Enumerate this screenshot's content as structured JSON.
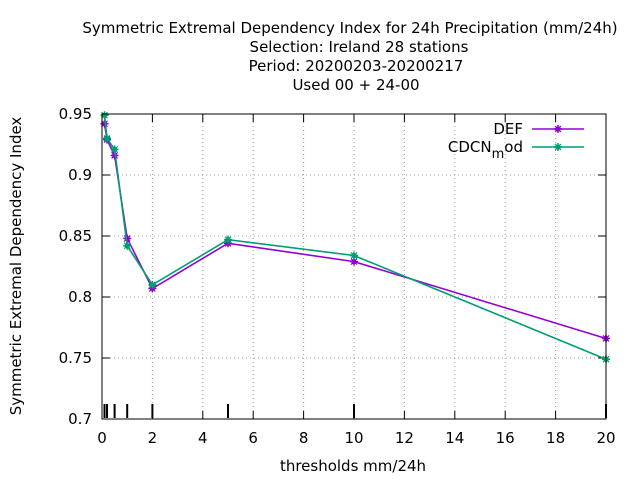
{
  "chart_data": {
    "type": "line",
    "title_lines": [
      "Symmetric Extremal Dependency Index  for 24h Precipitation (mm/24h)",
      "Selection: Ireland     28 stations",
      "Period: 20200203-20200217",
      "Used  00 + 24-00"
    ],
    "xlabel": "thresholds mm/24h",
    "ylabel": "Symmetric Extremal Dependency Index",
    "xlim": [
      0,
      20
    ],
    "ylim": [
      0.7,
      0.95
    ],
    "xticks": [
      0,
      2,
      4,
      6,
      8,
      10,
      12,
      14,
      16,
      18,
      20
    ],
    "yticks": [
      0.7,
      0.75,
      0.8,
      0.85,
      0.9,
      0.95
    ],
    "grid": true,
    "legend_position": "top-right",
    "threshold_marks": [
      0.1,
      0.2,
      0.5,
      1,
      2,
      5,
      10,
      20
    ],
    "series": [
      {
        "name": "DEF",
        "color": "#9400d3",
        "x": [
          0.1,
          0.2,
          0.5,
          1,
          2,
          5,
          10,
          20
        ],
        "y": [
          0.942,
          0.929,
          0.916,
          0.848,
          0.807,
          0.844,
          0.829,
          0.766
        ]
      },
      {
        "name_main": "CDCN",
        "name_sub": "m",
        "name_tail": "od",
        "color": "#009e73",
        "x": [
          0.1,
          0.2,
          0.5,
          1,
          2,
          5,
          10,
          20
        ],
        "y": [
          0.949,
          0.93,
          0.921,
          0.842,
          0.81,
          0.847,
          0.834,
          0.749
        ]
      }
    ]
  }
}
